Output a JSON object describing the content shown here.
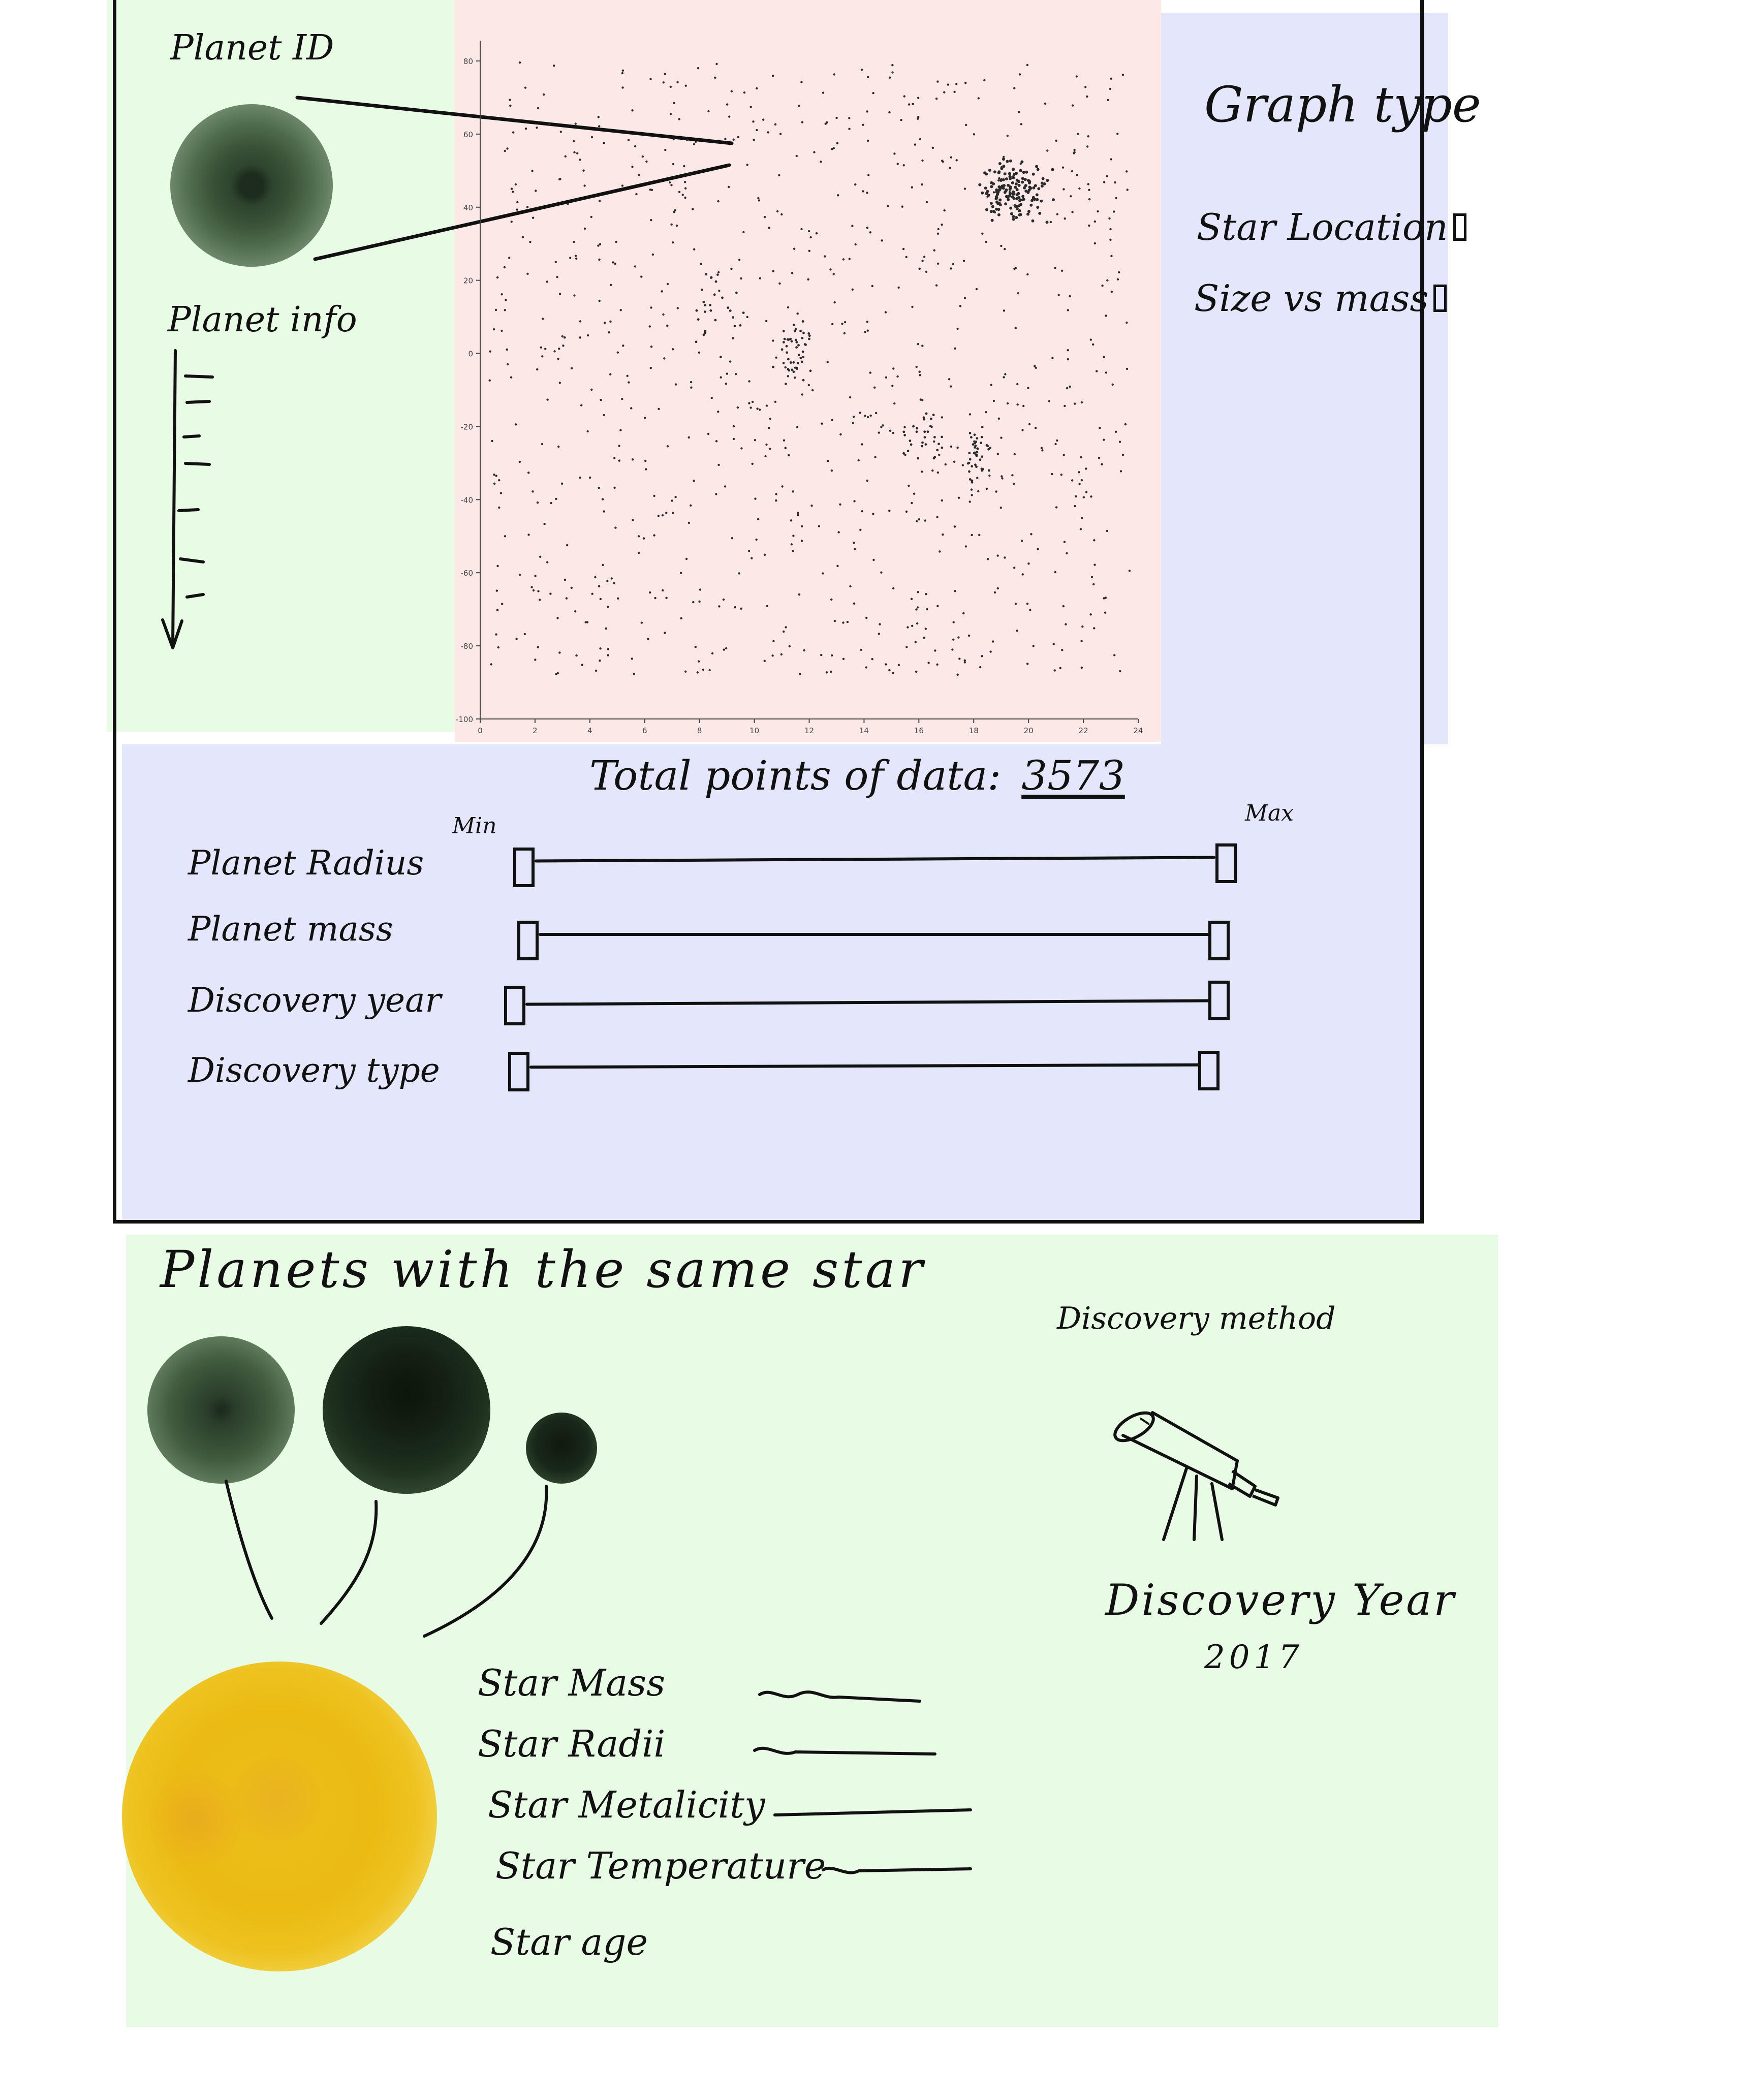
{
  "planet_id": {
    "title": "Planet ID"
  },
  "planet_info": {
    "title": "Planet info"
  },
  "graph_type": {
    "title": "Graph type",
    "options": [
      "Star Location",
      "Size vs mass"
    ]
  },
  "totals": {
    "label": "Total points of data:",
    "value": "3573"
  },
  "filters": {
    "min_label": "Min",
    "max_label": "Max",
    "sliders": [
      {
        "label": "Planet Radius"
      },
      {
        "label": "Planet mass"
      },
      {
        "label": "Discovery year"
      },
      {
        "label": "Discovery type"
      }
    ]
  },
  "same_star": {
    "title": "Planets with the same star"
  },
  "star_attributes": [
    "Star Mass",
    "Star Radii",
    "Star Metalicity",
    "Star Temperature",
    "Star age"
  ],
  "discovery": {
    "method_title": "Discovery method",
    "method_icon": "telescope-icon",
    "year_title": "Discovery Year",
    "year_value": "2017"
  },
  "chart_data": {
    "type": "scatter",
    "title": "",
    "xlabel": "",
    "ylabel": "",
    "xlim": [
      0,
      24
    ],
    "ylim": [
      -100,
      80
    ],
    "x_ticks": [
      0,
      2,
      4,
      6,
      8,
      10,
      12,
      14,
      16,
      18,
      20,
      22,
      24
    ],
    "y_ticks": [
      80,
      60,
      40,
      20,
      0,
      -20,
      -40,
      -60,
      -80,
      -100
    ],
    "grid": false,
    "clusters": [
      {
        "name": "",
        "x": 19.4,
        "y": 44,
        "spread_x": 0.6,
        "spread_y": 4,
        "count": 160
      },
      {
        "name": "",
        "x": 11.5,
        "y": 1,
        "spread_x": 0.35,
        "spread_y": 4,
        "count": 45
      },
      {
        "name": "",
        "x": 18.1,
        "y": -28,
        "spread_x": 0.2,
        "spread_y": 4,
        "count": 40
      },
      {
        "name": "",
        "x": 16.2,
        "y": -22,
        "spread_x": 0.3,
        "spread_y": 4,
        "count": 28
      },
      {
        "name": "",
        "x": 8.6,
        "y": 12,
        "spread_x": 0.45,
        "spread_y": 7,
        "count": 30
      }
    ],
    "background_points": 900
  },
  "colors": {
    "green_panel": "#e8fbe4",
    "pink_panel": "#fde8e8",
    "blue_panel": "#e4e6fc",
    "star": "#ecbd1a"
  }
}
